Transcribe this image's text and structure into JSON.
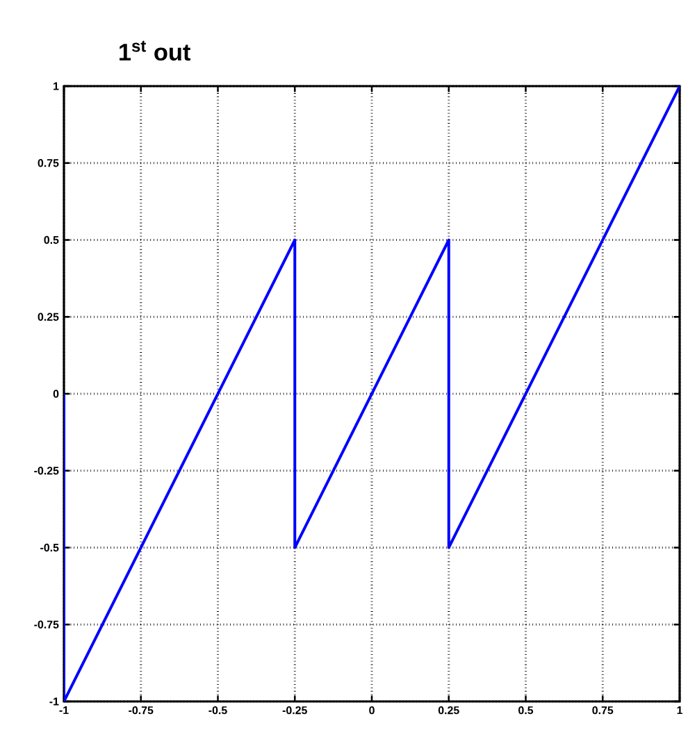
{
  "chart_data": {
    "type": "line",
    "title": "1$^{st}$ out",
    "x": [
      -1,
      -1,
      -0.25,
      -0.25,
      0.25,
      0.25,
      1
    ],
    "series": [
      {
        "color": "#0000ff",
        "values": [
          0,
          -1,
          0.5,
          -0.5,
          0.5,
          -0.5,
          1
        ]
      }
    ],
    "xlim": [
      -1,
      1
    ],
    "ylim": [
      -1,
      1
    ],
    "xticks": [
      -1,
      -0.75,
      -0.5,
      -0.25,
      0,
      0.25,
      0.5,
      0.75,
      1
    ],
    "yticks": [
      -1,
      -0.75,
      -0.5,
      -0.25,
      0,
      0.25,
      0.5,
      0.75,
      1
    ],
    "grid": true,
    "marker": "none",
    "line_style": "solid"
  }
}
